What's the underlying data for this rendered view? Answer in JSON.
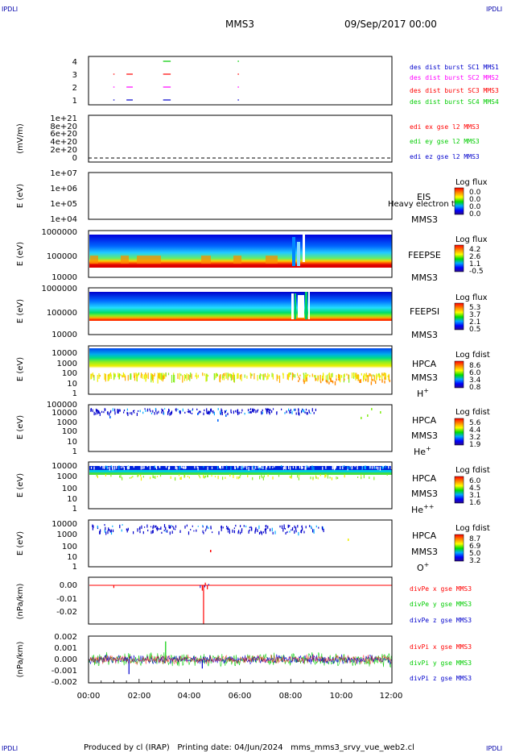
{
  "corner_marks": [
    "IPDLI",
    "IPDLI",
    "IPDLI",
    "IPDLI"
  ],
  "header": {
    "mission": "MMS3",
    "datetime": "09/Sep/2017 00:00"
  },
  "footer": {
    "text": "Produced by cl (IRAP)   Printing date: 04/Jun/2024   mms_mms3_srvy_vue_web2.cl"
  },
  "x_axis": {
    "ticks": [
      "00:00",
      "02:00",
      "04:00",
      "06:00",
      "08:00",
      "10:00",
      "12:00"
    ]
  },
  "colors": {
    "red": "#ff0000",
    "green": "#00cc00",
    "blue": "#0000cc",
    "magenta": "#ff00ff",
    "black": "#000000"
  },
  "chart_data": [
    {
      "type": "scatter",
      "id": "burst",
      "yticks": [
        "1",
        "2",
        "3",
        "4"
      ],
      "ylim": [
        0.5,
        4.5
      ],
      "legend": [
        {
          "name": "des dist burst SC1 MMS1",
          "color": "#0000cc"
        },
        {
          "name": "des dist burst SC2 MMS2",
          "color": "#ff00ff"
        },
        {
          "name": "des dist burst SC3 MMS3",
          "color": "#ff0000"
        },
        {
          "name": "des dist burst SC4 MMS4",
          "color": "#00cc00"
        }
      ],
      "segments": [
        {
          "sc": 1,
          "start": 0.98,
          "end": 1.0
        },
        {
          "sc": 1,
          "start": 1.5,
          "end": 1.75
        },
        {
          "sc": 1,
          "start": 2.95,
          "end": 3.25
        },
        {
          "sc": 1,
          "start": 5.9,
          "end": 5.95
        },
        {
          "sc": 2,
          "start": 0.98,
          "end": 1.0
        },
        {
          "sc": 2,
          "start": 1.5,
          "end": 1.75
        },
        {
          "sc": 2,
          "start": 2.95,
          "end": 3.25
        },
        {
          "sc": 2,
          "start": 5.9,
          "end": 5.95
        },
        {
          "sc": 3,
          "start": 0.98,
          "end": 1.0
        },
        {
          "sc": 3,
          "start": 1.5,
          "end": 1.75
        },
        {
          "sc": 3,
          "start": 2.95,
          "end": 3.25
        },
        {
          "sc": 3,
          "start": 5.9,
          "end": 5.95
        },
        {
          "sc": 4,
          "start": 2.95,
          "end": 3.25
        },
        {
          "sc": 4,
          "start": 5.9,
          "end": 5.95
        }
      ]
    },
    {
      "type": "line",
      "id": "edi",
      "ylabel": "(mV/m)",
      "yticks": [
        "0",
        "2e+20",
        "4e+20",
        "6e+20",
        "8e+20",
        "1e+21"
      ],
      "ylim": [
        0,
        1e+21
      ],
      "legend": [
        {
          "name": "edi ex gse l2 MMS3",
          "color": "#ff0000"
        },
        {
          "name": "edi ey gse l2 MMS3",
          "color": "#00cc00"
        },
        {
          "name": "edi ez gse l2 MMS3",
          "color": "#0000cc"
        }
      ]
    },
    {
      "type": "heatmap",
      "id": "eis",
      "ylabel": "E (eV)",
      "yticks": [
        "1e+04",
        "1e+05",
        "1e+06",
        "1e+07"
      ],
      "labels": [
        "EIS",
        "MMS3"
      ],
      "overlay_text": "Heavy electron to",
      "colorbar": {
        "title": "Log flux",
        "values": [
          "0.0",
          "0.0",
          "0.0",
          "0.0"
        ]
      }
    },
    {
      "type": "heatmap",
      "id": "feepse",
      "ylabel": "E (eV)",
      "yticks": [
        "10000",
        "100000",
        "1000000"
      ],
      "labels": [
        "FEEPSE",
        "MMS3"
      ],
      "colorbar": {
        "title": "Log flux",
        "values": [
          "4.2",
          "2.6",
          "1.1",
          "-0.5"
        ]
      }
    },
    {
      "type": "heatmap",
      "id": "feepsi",
      "ylabel": "E (eV)",
      "yticks": [
        "10000",
        "100000",
        "1000000"
      ],
      "labels": [
        "FEEPSI",
        "MMS3"
      ],
      "colorbar": {
        "title": "Log flux",
        "values": [
          "5.3",
          "3.7",
          "2.1",
          "0.5"
        ]
      }
    },
    {
      "type": "heatmap",
      "id": "hpca_h",
      "ylabel": "E (eV)",
      "yticks": [
        "1",
        "10",
        "100",
        "1000",
        "10000"
      ],
      "labels": [
        "HPCA",
        "MMS3",
        "H"
      ],
      "species_sup": "+",
      "colorbar": {
        "title": "Log fdist",
        "values": [
          "8.6",
          "6.0",
          "3.4",
          "0.8"
        ]
      }
    },
    {
      "type": "heatmap",
      "id": "hpca_he1",
      "ylabel": "E (eV)",
      "yticks": [
        "1",
        "10",
        "100",
        "1000",
        "10000",
        "100000"
      ],
      "labels": [
        "HPCA",
        "MMS3",
        "He"
      ],
      "species_sup": "+",
      "colorbar": {
        "title": "Log fdist",
        "values": [
          "5.6",
          "4.4",
          "3.2",
          "1.9"
        ]
      }
    },
    {
      "type": "heatmap",
      "id": "hpca_he2",
      "ylabel": "E (eV)",
      "yticks": [
        "1",
        "10",
        "100",
        "1000",
        "10000"
      ],
      "labels": [
        "HPCA",
        "MMS3",
        "He"
      ],
      "species_sup": "++",
      "colorbar": {
        "title": "Log fdist",
        "values": [
          "6.0",
          "4.5",
          "3.1",
          "1.6"
        ]
      }
    },
    {
      "type": "heatmap",
      "id": "hpca_o",
      "ylabel": "E (eV)",
      "yticks": [
        "1",
        "10",
        "100",
        "1000",
        "10000"
      ],
      "labels": [
        "HPCA",
        "MMS3",
        "O"
      ],
      "species_sup": "+",
      "colorbar": {
        "title": "Log fdist",
        "values": [
          "8.7",
          "6.9",
          "5.0",
          "3.2"
        ]
      }
    },
    {
      "type": "line",
      "id": "divpe",
      "ylabel": "(nPa/km)",
      "yticks": [
        "-0.02",
        "-0.01",
        "0.00"
      ],
      "ylim": [
        -0.03,
        0.005
      ],
      "legend": [
        {
          "name": "divPe x gse MMS3",
          "color": "#ff0000"
        },
        {
          "name": "divPe y gse MMS3",
          "color": "#00cc00"
        },
        {
          "name": "divPe z gse MMS3",
          "color": "#0000cc"
        }
      ],
      "spikes": [
        {
          "t": 4.55,
          "value": -0.029,
          "color": "#ff0000"
        },
        {
          "t": 4.5,
          "value": -0.004,
          "color": "#ff0000"
        },
        {
          "t": 4.62,
          "value": 0.002,
          "color": "#ff0000"
        },
        {
          "t": 4.7,
          "value": -0.003,
          "color": "#ff0000"
        },
        {
          "t": 1.0,
          "value": -0.002,
          "color": "#ff0000"
        }
      ]
    },
    {
      "type": "line",
      "id": "divpi",
      "ylabel": "(nPa/km)",
      "yticks": [
        "-0.002",
        "-0.001",
        "0.000",
        "0.001",
        "0.002"
      ],
      "ylim": [
        -0.002,
        0.002
      ],
      "legend": [
        {
          "name": "divPi x gse MMS3",
          "color": "#ff0000"
        },
        {
          "name": "divPi y gse MMS3",
          "color": "#00cc00"
        },
        {
          "name": "divPi z gse MMS3",
          "color": "#0000cc"
        }
      ],
      "noise_amplitude": {
        "x": 0.0004,
        "y": 0.0006,
        "z": 0.0004
      },
      "spikes": [
        {
          "t": 1.6,
          "value": -0.0013,
          "color": "#0000cc"
        },
        {
          "t": 3.05,
          "value": 0.0016,
          "color": "#00cc00"
        },
        {
          "t": 4.5,
          "value": -0.0008,
          "color": "#0000cc"
        }
      ]
    }
  ]
}
